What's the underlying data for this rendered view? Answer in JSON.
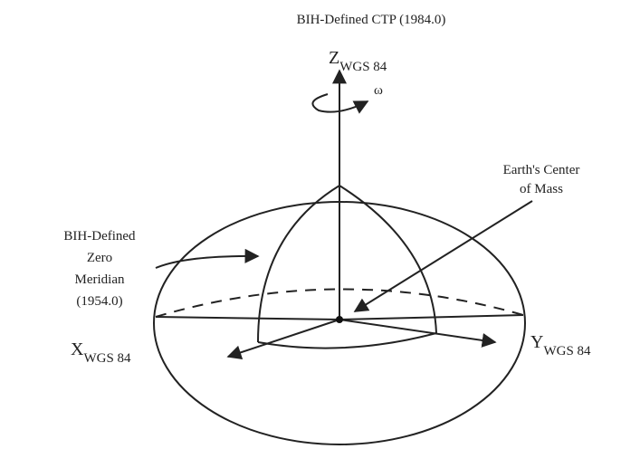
{
  "title": "BIH-Defined CTP (1984.0)",
  "axes": {
    "z": {
      "letter": "Z",
      "subscript": "WGS 84"
    },
    "x": {
      "letter": "X",
      "subscript": "WGS 84"
    },
    "y": {
      "letter": "Y",
      "subscript": "WGS 84"
    }
  },
  "omega": "ω",
  "center_label": [
    "Earth's Center",
    "of Mass"
  ],
  "meridian_label": [
    "BIH-Defined",
    "Zero",
    "Meridian",
    "(1954.0)"
  ]
}
